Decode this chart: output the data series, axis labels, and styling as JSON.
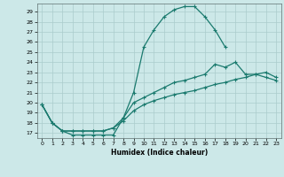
{
  "line1_x": [
    0,
    1,
    2,
    3,
    4,
    5,
    6,
    7,
    8,
    9,
    10,
    11,
    12,
    13,
    14,
    15,
    16,
    17,
    18
  ],
  "line1_y": [
    19.8,
    18.0,
    17.2,
    16.8,
    16.8,
    16.8,
    16.8,
    16.8,
    18.5,
    21.0,
    25.5,
    27.2,
    28.5,
    29.2,
    29.5,
    29.5,
    28.5,
    27.2,
    25.5
  ],
  "line2_x": [
    0,
    1,
    2,
    3,
    4,
    5,
    6,
    7,
    8,
    9,
    10,
    11,
    12,
    13,
    14,
    15,
    16,
    17,
    18,
    19,
    20,
    21,
    22,
    23
  ],
  "line2_y": [
    19.8,
    18.0,
    17.2,
    17.2,
    17.2,
    17.2,
    17.2,
    17.5,
    18.5,
    20.0,
    20.5,
    21.0,
    21.5,
    22.0,
    22.2,
    22.5,
    22.8,
    23.8,
    23.5,
    24.0,
    22.8,
    22.8,
    22.5,
    22.2
  ],
  "line3_x": [
    0,
    1,
    2,
    3,
    4,
    5,
    6,
    7,
    8,
    9,
    10,
    11,
    12,
    13,
    14,
    15,
    16,
    17,
    18,
    19,
    20,
    21,
    22,
    23
  ],
  "line3_y": [
    19.8,
    18.0,
    17.2,
    17.2,
    17.2,
    17.2,
    17.2,
    17.5,
    18.2,
    19.2,
    19.8,
    20.2,
    20.5,
    20.8,
    21.0,
    21.2,
    21.5,
    21.8,
    22.0,
    22.3,
    22.5,
    22.8,
    23.0,
    22.5
  ],
  "color": "#1a7a6e",
  "bg_color": "#cce8e8",
  "grid_color": "#aacccc",
  "xlabel": "Humidex (Indice chaleur)",
  "xlim": [
    -0.5,
    23.5
  ],
  "ylim": [
    16.5,
    29.8
  ],
  "xticks": [
    0,
    1,
    2,
    3,
    4,
    5,
    6,
    7,
    8,
    9,
    10,
    11,
    12,
    13,
    14,
    15,
    16,
    17,
    18,
    19,
    20,
    21,
    22,
    23
  ],
  "yticks": [
    17,
    18,
    19,
    20,
    21,
    22,
    23,
    24,
    25,
    26,
    27,
    28,
    29
  ],
  "marker": "+"
}
